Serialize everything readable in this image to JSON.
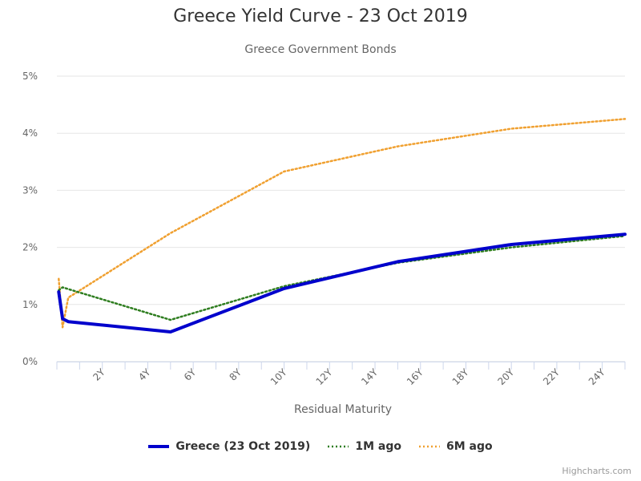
{
  "chart_data": {
    "type": "line",
    "title": "Greece Yield Curve - 23 Oct 2019",
    "subtitle": "Greece Government Bonds",
    "xlabel": "Residual Maturity",
    "ylabel": "",
    "xlim": [
      0,
      25
    ],
    "ylim": [
      0,
      5
    ],
    "x_ticks": [
      "2Y",
      "4Y",
      "6Y",
      "8Y",
      "10Y",
      "12Y",
      "14Y",
      "16Y",
      "18Y",
      "20Y",
      "22Y",
      "24Y"
    ],
    "x_tick_values": [
      2,
      4,
      6,
      8,
      10,
      12,
      14,
      16,
      18,
      20,
      22,
      24
    ],
    "y_ticks": [
      "0%",
      "1%",
      "2%",
      "3%",
      "4%",
      "5%"
    ],
    "y_tick_values": [
      0,
      1,
      2,
      3,
      4,
      5
    ],
    "grid": true,
    "legend_position": "bottom",
    "series": [
      {
        "name": "Greece (23 Oct 2019)",
        "color": "#0000cc",
        "style": "solid",
        "x": [
          0.08,
          0.25,
          0.5,
          5,
          10,
          15,
          20,
          25
        ],
        "y": [
          1.22,
          0.75,
          0.7,
          0.52,
          1.28,
          1.75,
          2.05,
          2.23
        ]
      },
      {
        "name": "1M ago",
        "color": "#2e7d1f",
        "style": "dotted",
        "x": [
          0.08,
          0.25,
          0.5,
          5,
          10,
          15,
          20,
          25
        ],
        "y": [
          1.25,
          1.3,
          1.27,
          0.73,
          1.32,
          1.73,
          2.0,
          2.2
        ]
      },
      {
        "name": "6M ago",
        "color": "#f0a030",
        "style": "dotted",
        "x": [
          0.08,
          0.25,
          0.5,
          5,
          10,
          15,
          20,
          25
        ],
        "y": [
          1.45,
          0.6,
          1.12,
          2.25,
          3.33,
          3.77,
          4.08,
          4.25
        ]
      }
    ]
  },
  "credits": "Highcharts.com"
}
